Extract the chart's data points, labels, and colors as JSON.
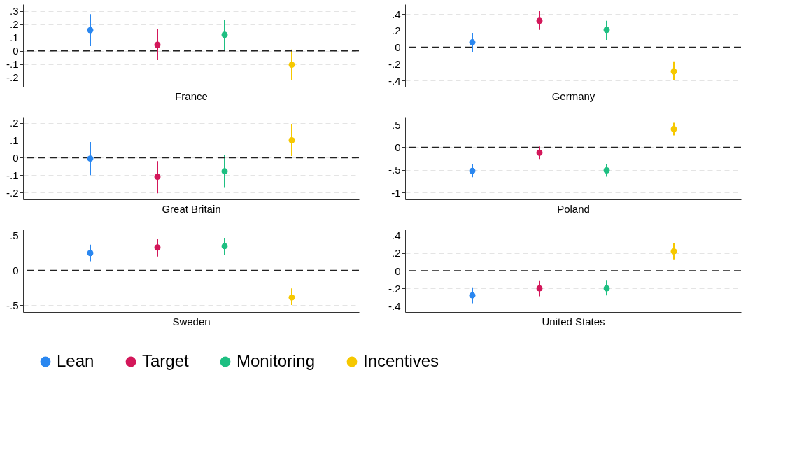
{
  "chart_data": [
    {
      "type": "scatter",
      "xlabel": "France",
      "categories": [
        null,
        null,
        null,
        null
      ],
      "ylim": [
        -0.27,
        0.35
      ],
      "yticks": [
        {
          "value": -0.2,
          "label": "-.2"
        },
        {
          "value": -0.1,
          "label": "-.1"
        },
        0,
        {
          "value": 0.1,
          "label": ".1"
        },
        {
          "value": 0.2,
          "label": ".2"
        },
        {
          "value": 0.3,
          "label": ".3"
        }
      ],
      "grid": "y",
      "marker": "circle",
      "legend": "bottom",
      "ref_lines": [
        {
          "axis": "y",
          "value": 0,
          "color": "#222222",
          "line_style": "dashed"
        }
      ],
      "series": [
        {
          "name": "Lean",
          "color": "#2a87f0",
          "values": [
            0.155,
            null,
            null,
            null
          ],
          "errors": [
            [
              0.035,
              0.275
            ],
            null,
            null,
            null
          ]
        },
        {
          "name": "Target",
          "color": "#d3175a",
          "values": [
            null,
            0.045,
            null,
            null
          ],
          "errors": [
            null,
            [
              -0.07,
              0.165
            ],
            null,
            null
          ]
        },
        {
          "name": "Monitoring",
          "color": "#1ebf82",
          "values": [
            null,
            null,
            0.12,
            null
          ],
          "errors": [
            null,
            null,
            [
              0.005,
              0.235
            ],
            null
          ]
        },
        {
          "name": "Incentives",
          "color": "#f6c800",
          "values": [
            null,
            null,
            null,
            -0.105
          ],
          "errors": [
            null,
            null,
            null,
            [
              -0.22,
              0.01
            ]
          ]
        }
      ]
    },
    {
      "type": "scatter",
      "xlabel": "Germany",
      "categories": [
        null,
        null,
        null,
        null
      ],
      "ylim": [
        -0.475,
        0.52
      ],
      "yticks": [
        {
          "value": -0.4,
          "label": "-.4"
        },
        {
          "value": -0.2,
          "label": "-.2"
        },
        0,
        {
          "value": 0.2,
          "label": ".2"
        },
        {
          "value": 0.4,
          "label": ".4"
        }
      ],
      "grid": "y",
      "marker": "circle",
      "legend": "bottom",
      "ref_lines": [
        {
          "axis": "y",
          "value": 0,
          "color": "#222222",
          "line_style": "dashed"
        }
      ],
      "series": [
        {
          "name": "Lean",
          "color": "#2a87f0",
          "values": [
            0.06,
            null,
            null,
            null
          ],
          "errors": [
            [
              -0.055,
              0.175
            ],
            null,
            null,
            null
          ]
        },
        {
          "name": "Target",
          "color": "#d3175a",
          "values": [
            null,
            0.32,
            null,
            null
          ],
          "errors": [
            null,
            [
              0.21,
              0.435
            ],
            null,
            null
          ]
        },
        {
          "name": "Monitoring",
          "color": "#1ebf82",
          "values": [
            null,
            null,
            0.21,
            null
          ],
          "errors": [
            null,
            null,
            [
              0.09,
              0.32
            ],
            null
          ]
        },
        {
          "name": "Incentives",
          "color": "#f6c800",
          "values": [
            null,
            null,
            null,
            -0.29
          ],
          "errors": [
            null,
            null,
            null,
            [
              -0.395,
              -0.17
            ]
          ]
        }
      ]
    },
    {
      "type": "scatter",
      "xlabel": "Great Britain",
      "categories": [
        null,
        null,
        null,
        null
      ],
      "ylim": [
        -0.24,
        0.235
      ],
      "yticks": [
        {
          "value": -0.2,
          "label": "-.2"
        },
        {
          "value": -0.1,
          "label": "-.1"
        },
        0,
        {
          "value": 0.1,
          "label": ".1"
        },
        {
          "value": 0.2,
          "label": ".2"
        }
      ],
      "grid": "y",
      "marker": "circle",
      "legend": "bottom",
      "ref_lines": [
        {
          "axis": "y",
          "value": 0,
          "color": "#222222",
          "line_style": "dashed"
        }
      ],
      "series": [
        {
          "name": "Lean",
          "color": "#2a87f0",
          "values": [
            -0.005,
            null,
            null,
            null
          ],
          "errors": [
            [
              -0.1,
              0.09
            ],
            null,
            null,
            null
          ]
        },
        {
          "name": "Target",
          "color": "#d3175a",
          "values": [
            null,
            -0.11,
            null,
            null
          ],
          "errors": [
            null,
            [
              -0.205,
              -0.02
            ],
            null,
            null
          ]
        },
        {
          "name": "Monitoring",
          "color": "#1ebf82",
          "values": [
            null,
            null,
            -0.078,
            null
          ],
          "errors": [
            null,
            null,
            [
              -0.17,
              0.015
            ],
            null
          ]
        },
        {
          "name": "Incentives",
          "color": "#f6c800",
          "values": [
            null,
            null,
            null,
            0.1
          ],
          "errors": [
            null,
            null,
            null,
            [
              0.01,
              0.195
            ]
          ]
        }
      ]
    },
    {
      "type": "scatter",
      "xlabel": "Poland",
      "categories": [
        null,
        null,
        null,
        null
      ],
      "ylim": [
        -1.15,
        0.67
      ],
      "yticks": [
        -1,
        {
          "value": -0.5,
          "label": "-.5"
        },
        0,
        {
          "value": 0.5,
          "label": ".5"
        }
      ],
      "grid": "y",
      "marker": "circle",
      "legend": "bottom",
      "ref_lines": [
        {
          "axis": "y",
          "value": 0,
          "color": "#222222",
          "line_style": "dashed"
        }
      ],
      "series": [
        {
          "name": "Lean",
          "color": "#2a87f0",
          "values": [
            -0.52,
            null,
            null,
            null
          ],
          "errors": [
            [
              -0.66,
              -0.38
            ],
            null,
            null,
            null
          ]
        },
        {
          "name": "Target",
          "color": "#d3175a",
          "values": [
            null,
            -0.12,
            null,
            null
          ],
          "errors": [
            null,
            [
              -0.26,
              0.02
            ],
            null,
            null
          ]
        },
        {
          "name": "Monitoring",
          "color": "#1ebf82",
          "values": [
            null,
            null,
            -0.51,
            null
          ],
          "errors": [
            null,
            null,
            [
              -0.65,
              -0.37
            ],
            null
          ]
        },
        {
          "name": "Incentives",
          "color": "#f6c800",
          "values": [
            null,
            null,
            null,
            0.4
          ],
          "errors": [
            null,
            null,
            null,
            [
              0.26,
              0.54
            ]
          ]
        }
      ]
    },
    {
      "type": "scatter",
      "xlabel": "Sweden",
      "categories": [
        null,
        null,
        null,
        null
      ],
      "ylim": [
        -0.6,
        0.59
      ],
      "yticks": [
        {
          "value": -0.5,
          "label": "-.5"
        },
        0,
        {
          "value": 0.5,
          "label": ".5"
        }
      ],
      "grid": "y",
      "marker": "circle",
      "legend": "bottom",
      "ref_lines": [
        {
          "axis": "y",
          "value": 0,
          "color": "#222222",
          "line_style": "dashed"
        }
      ],
      "series": [
        {
          "name": "Lean",
          "color": "#2a87f0",
          "values": [
            0.25,
            null,
            null,
            null
          ],
          "errors": [
            [
              0.13,
              0.37
            ],
            null,
            null,
            null
          ]
        },
        {
          "name": "Target",
          "color": "#d3175a",
          "values": [
            null,
            0.33,
            null,
            null
          ],
          "errors": [
            null,
            [
              0.2,
              0.45
            ],
            null,
            null
          ]
        },
        {
          "name": "Monitoring",
          "color": "#1ebf82",
          "values": [
            null,
            null,
            0.35,
            null
          ],
          "errors": [
            null,
            null,
            [
              0.225,
              0.47
            ],
            null
          ]
        },
        {
          "name": "Incentives",
          "color": "#f6c800",
          "values": [
            null,
            null,
            null,
            -0.39
          ],
          "errors": [
            null,
            null,
            null,
            [
              -0.5,
              -0.26
            ]
          ]
        }
      ]
    },
    {
      "type": "scatter",
      "xlabel": "United States",
      "categories": [
        null,
        null,
        null,
        null
      ],
      "ylim": [
        -0.47,
        0.47
      ],
      "yticks": [
        {
          "value": -0.4,
          "label": "-.4"
        },
        {
          "value": -0.2,
          "label": "-.2"
        },
        0,
        {
          "value": 0.2,
          "label": ".2"
        },
        {
          "value": 0.4,
          "label": ".4"
        }
      ],
      "grid": "y",
      "marker": "circle",
      "legend": "bottom",
      "ref_lines": [
        {
          "axis": "y",
          "value": 0,
          "color": "#222222",
          "line_style": "dashed"
        }
      ],
      "series": [
        {
          "name": "Lean",
          "color": "#2a87f0",
          "values": [
            -0.28,
            null,
            null,
            null
          ],
          "errors": [
            [
              -0.37,
              -0.19
            ],
            null,
            null,
            null
          ]
        },
        {
          "name": "Target",
          "color": "#d3175a",
          "values": [
            null,
            -0.2,
            null,
            null
          ],
          "errors": [
            null,
            [
              -0.29,
              -0.11
            ],
            null,
            null
          ]
        },
        {
          "name": "Monitoring",
          "color": "#1ebf82",
          "values": [
            null,
            null,
            -0.2,
            null
          ],
          "errors": [
            null,
            null,
            [
              -0.28,
              -0.105
            ],
            null
          ]
        },
        {
          "name": "Incentives",
          "color": "#f6c800",
          "values": [
            null,
            null,
            null,
            0.22
          ],
          "errors": [
            null,
            null,
            null,
            [
              0.13,
              0.31
            ]
          ]
        }
      ]
    }
  ]
}
